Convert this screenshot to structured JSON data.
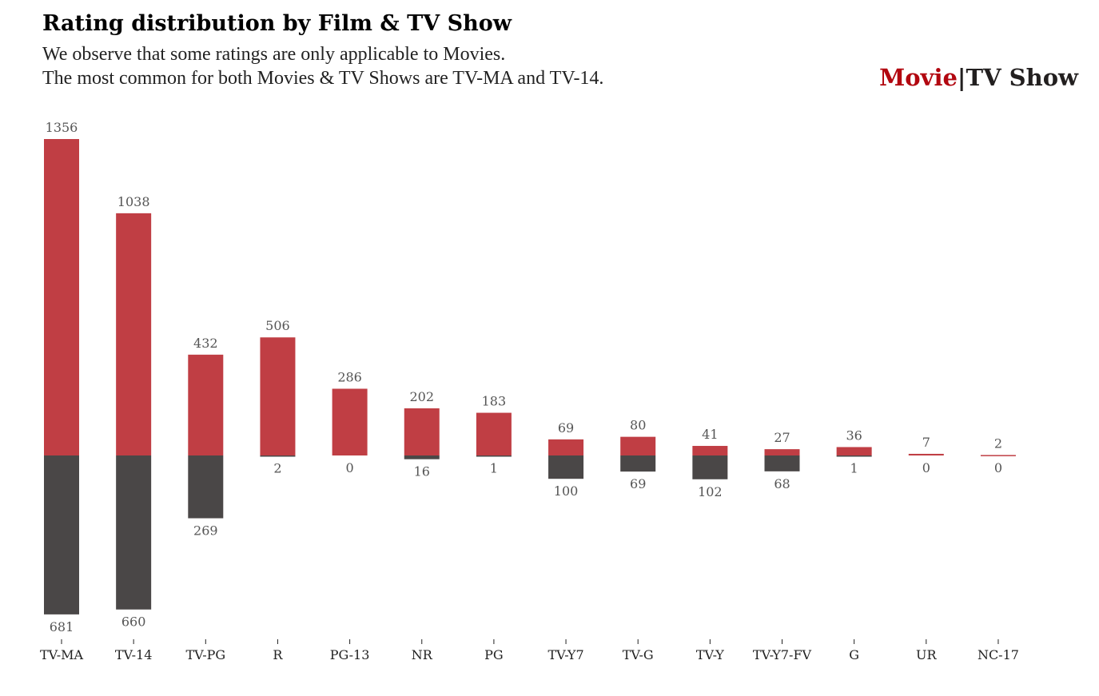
{
  "chart_data": {
    "type": "bar",
    "title": "Rating distribution by Film & TV Show",
    "subtitle_lines": [
      "We observe that some ratings are only applicable to Movies.",
      "The most common for both Movies & TV Shows are TV-MA and TV-14."
    ],
    "legend": {
      "movie": "Movie",
      "separator": "|",
      "tv": "TV Show",
      "placement": "top-right"
    },
    "categories": [
      "TV-MA",
      "TV-14",
      "TV-PG",
      "R",
      "PG-13",
      "NR",
      "PG",
      "TV-Y7",
      "TV-G",
      "TV-Y",
      "TV-Y7-FV",
      "G",
      "UR",
      "NC-17"
    ],
    "series": [
      {
        "name": "Movie",
        "direction": "up",
        "color": "#c03e44",
        "values": [
          1356,
          1038,
          432,
          506,
          286,
          202,
          183,
          69,
          80,
          41,
          27,
          36,
          7,
          2
        ]
      },
      {
        "name": "TV Show",
        "direction": "down",
        "color": "#4a4747",
        "values": [
          681,
          660,
          269,
          2,
          0,
          16,
          1,
          100,
          69,
          102,
          68,
          1,
          0,
          0
        ]
      }
    ],
    "grid": false,
    "colors": {
      "movie_legend": "#b20710",
      "tv_legend": "#221f1f"
    }
  }
}
